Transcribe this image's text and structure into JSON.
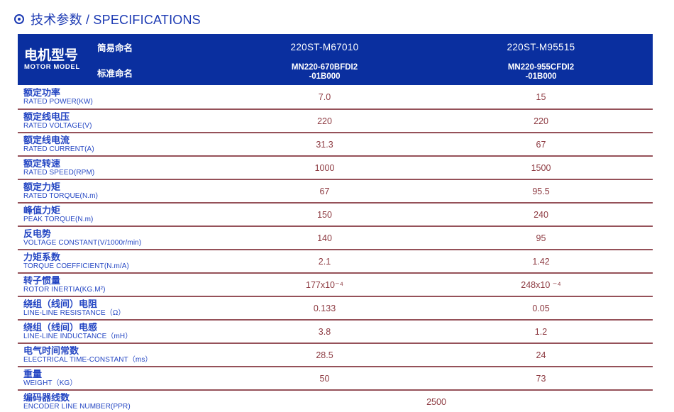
{
  "page": {
    "title": "技术参数 / SPECIFICATIONS"
  },
  "colors": {
    "title_blue": "#1c3ab3",
    "header_background": "#0a2f9f",
    "header_text": "#ffffff",
    "label_blue": "#2446c3",
    "value_maroon": "#8d3a41",
    "separator": "#955159"
  },
  "table": {
    "header": {
      "row_label_cn": "电机型号",
      "row_label_en": "MOTOR MODEL",
      "simple_name_label": "简易命名",
      "standard_name_label": "标准命名",
      "columns": [
        {
          "simple_name": "220ST-M67010",
          "standard_name_line1": "MN220-670BFDI2",
          "standard_name_line2": "-01B000"
        },
        {
          "simple_name": "220ST-M95515",
          "standard_name_line1": "MN220-955CFDI2",
          "standard_name_line2": "-01B000"
        }
      ]
    },
    "rows": [
      {
        "label_cn": "额定功率",
        "label_en": "RATED POWER(KW)",
        "values": [
          "7.0",
          "15"
        ]
      },
      {
        "label_cn": "额定线电压",
        "label_en": "RATED VOLTAGE(V)",
        "values": [
          "220",
          "220"
        ]
      },
      {
        "label_cn": "额定线电流",
        "label_en": "RATED CURRENT(A)",
        "values": [
          "31.3",
          "67"
        ]
      },
      {
        "label_cn": "额定转速",
        "label_en": "RATED SPEED(RPM)",
        "values": [
          "1000",
          "1500"
        ]
      },
      {
        "label_cn": "额定力矩",
        "label_en": "RATED TORQUE(N.m)",
        "values": [
          "67",
          "95.5"
        ]
      },
      {
        "label_cn": "峰值力矩",
        "label_en": "PEAK TORQUE(N.m)",
        "values": [
          "150",
          "240"
        ]
      },
      {
        "label_cn": "反电势",
        "label_en": "VOLTAGE CONSTANT(V/1000r/min)",
        "values": [
          "140",
          "95"
        ]
      },
      {
        "label_cn": "力矩系数",
        "label_en": "TORQUE COEFFICIENT(N.m/A)",
        "values": [
          "2.1",
          "1.42"
        ]
      },
      {
        "label_cn": "转子惯量",
        "label_en": "ROTOR INERTIA(KG.M²)",
        "values": [
          "177x10⁻⁴",
          "248x10 ⁻⁴"
        ]
      },
      {
        "label_cn": "绕组（线间）电阻",
        "label_en": "LINE-LINE RESISTANCE（Ω）",
        "values": [
          "0.133",
          "0.05"
        ]
      },
      {
        "label_cn": "绕组（线间）电感",
        "label_en": "LINE-LINE INDUCTANCE（mH）",
        "values": [
          "3.8",
          "1.2"
        ]
      },
      {
        "label_cn": "电气时间常数",
        "label_en": "ELECTRICAL TIME-CONSTANT（ms）",
        "values": [
          "28.5",
          "24"
        ]
      },
      {
        "label_cn": "重量",
        "label_en": "WEIGHT（KG）",
        "values": [
          "50",
          "73"
        ]
      }
    ],
    "encoder_row": {
      "label_cn": "编码器线数",
      "label_en": "ENCODER LINE NUMBER(PPR)",
      "value": "2500"
    }
  }
}
